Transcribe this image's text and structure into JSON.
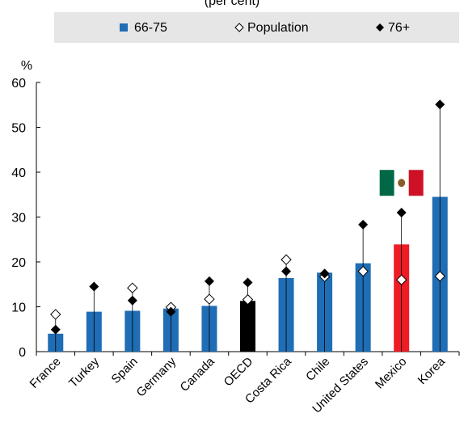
{
  "chart_data": {
    "type": "bar",
    "title_fragment": "(per cent)",
    "ylabel": "%",
    "ylim": [
      0,
      60
    ],
    "yticks": [
      0,
      10,
      20,
      30,
      40,
      50,
      60
    ],
    "grid": false,
    "legend_placement": "top",
    "categories": [
      "France",
      "Turkey",
      "Spain",
      "Germany",
      "Canada",
      "OECD",
      "Costa Rica",
      "Chile",
      "United States",
      "Mexico",
      "Korea"
    ],
    "series": [
      {
        "name": "66-75",
        "marker": "bar",
        "values": [
          4.0,
          8.9,
          9.1,
          9.6,
          10.2,
          11.3,
          16.4,
          17.6,
          19.7,
          23.9,
          34.5
        ]
      },
      {
        "name": "Population",
        "marker": "hollow-diamond",
        "values": [
          8.3,
          null,
          14.2,
          9.9,
          11.7,
          11.6,
          20.5,
          16.7,
          17.9,
          16.0,
          16.8
        ]
      },
      {
        "name": "76+",
        "marker": "filled-diamond",
        "values": [
          4.9,
          14.5,
          11.4,
          8.9,
          15.7,
          15.4,
          17.9,
          17.4,
          28.3,
          31.0,
          55.1
        ]
      }
    ],
    "bar_colors": {
      "default": "#1f6db4",
      "OECD": "#000000",
      "Mexico": "#ee1c25"
    },
    "flag": {
      "country": "Mexico",
      "colors": [
        "#006847",
        "#ffffff",
        "#ce1126"
      ]
    },
    "legend_band_color": "#e6e6e6"
  }
}
